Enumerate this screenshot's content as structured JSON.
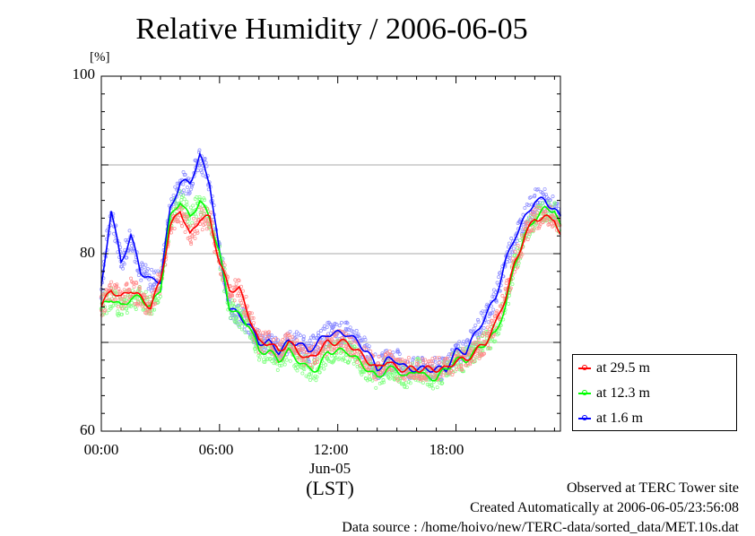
{
  "title": "Relative Humidity / 2006-06-05",
  "unit_label": "[%]",
  "x_date_label": "Jun-05",
  "x_axis_label": "(LST)",
  "footer": {
    "site": "Observed at TERC Tower site",
    "created": "Created Automatically at 2006-06-05/23:56:08",
    "source": "Data source : /home/hoivo/new/TERC-data/sorted_data/MET.10s.dat"
  },
  "legend": [
    {
      "label": "at 29.5 m",
      "color": "#ff0000"
    },
    {
      "label": "at 12.3 m",
      "color": "#00ff00"
    },
    {
      "label": "at 1.6 m",
      "color": "#0000ff"
    }
  ],
  "chart_data": {
    "type": "line",
    "title": "Relative Humidity / 2006-06-05",
    "xlabel": "(LST)",
    "ylabel": "[%]",
    "xlim": [
      0,
      23.3
    ],
    "ylim": [
      60,
      100
    ],
    "x_ticks": [
      {
        "value": 0,
        "label": "00:00"
      },
      {
        "value": 6,
        "label": "06:00"
      },
      {
        "value": 12,
        "label": "12:00"
      },
      {
        "value": 18,
        "label": "18:00"
      }
    ],
    "y_ticks": [
      60,
      80,
      100
    ],
    "grid_y": [
      70,
      80,
      90
    ],
    "legend_position": "right",
    "x": [
      0,
      0.5,
      1,
      1.5,
      2,
      2.5,
      3,
      3.5,
      4,
      4.5,
      5,
      5.5,
      6,
      6.5,
      7,
      7.5,
      8,
      8.5,
      9,
      9.5,
      10,
      10.5,
      11,
      11.5,
      12,
      12.5,
      13,
      13.5,
      14,
      14.5,
      15,
      15.5,
      16,
      16.5,
      17,
      17.5,
      18,
      18.5,
      19,
      19.5,
      20,
      20.5,
      21,
      21.5,
      22,
      22.5,
      23,
      23.3
    ],
    "series": [
      {
        "name": "at 29.5 m",
        "color": "#ff0000",
        "values": [
          74,
          76,
          75,
          76,
          75,
          74,
          77,
          83,
          85,
          82,
          84,
          84,
          79,
          76,
          76,
          73,
          70,
          70,
          69,
          70,
          69,
          68,
          69,
          70,
          70,
          70,
          69,
          68,
          67,
          68,
          67,
          67,
          67,
          67,
          67,
          67,
          68,
          68,
          69,
          70,
          72,
          75,
          79,
          82,
          84,
          84,
          84,
          82
        ]
      },
      {
        "name": "at 12.3 m",
        "color": "#00ff00",
        "values": [
          74,
          75,
          74,
          75,
          75,
          74,
          76,
          84,
          86,
          84,
          86,
          84,
          80,
          74,
          73,
          72,
          69,
          69,
          68,
          69,
          68,
          67,
          67,
          69,
          69,
          69,
          68,
          67,
          66,
          67,
          67,
          66,
          67,
          66,
          66,
          67,
          68,
          68,
          69,
          70,
          71,
          74,
          79,
          82,
          84,
          85,
          85,
          83
        ]
      },
      {
        "name": "at 1.6 m",
        "color": "#0000ff",
        "values": [
          76,
          85,
          79,
          82,
          78,
          77,
          77,
          85,
          88,
          88,
          91,
          88,
          80,
          74,
          73,
          72,
          70,
          70,
          69,
          70,
          70,
          69,
          70,
          71,
          71,
          71,
          70,
          69,
          67,
          68,
          68,
          67,
          67,
          67,
          67,
          67,
          69,
          69,
          71,
          73,
          75,
          79,
          82,
          84,
          86,
          86,
          85,
          84
        ]
      }
    ]
  }
}
